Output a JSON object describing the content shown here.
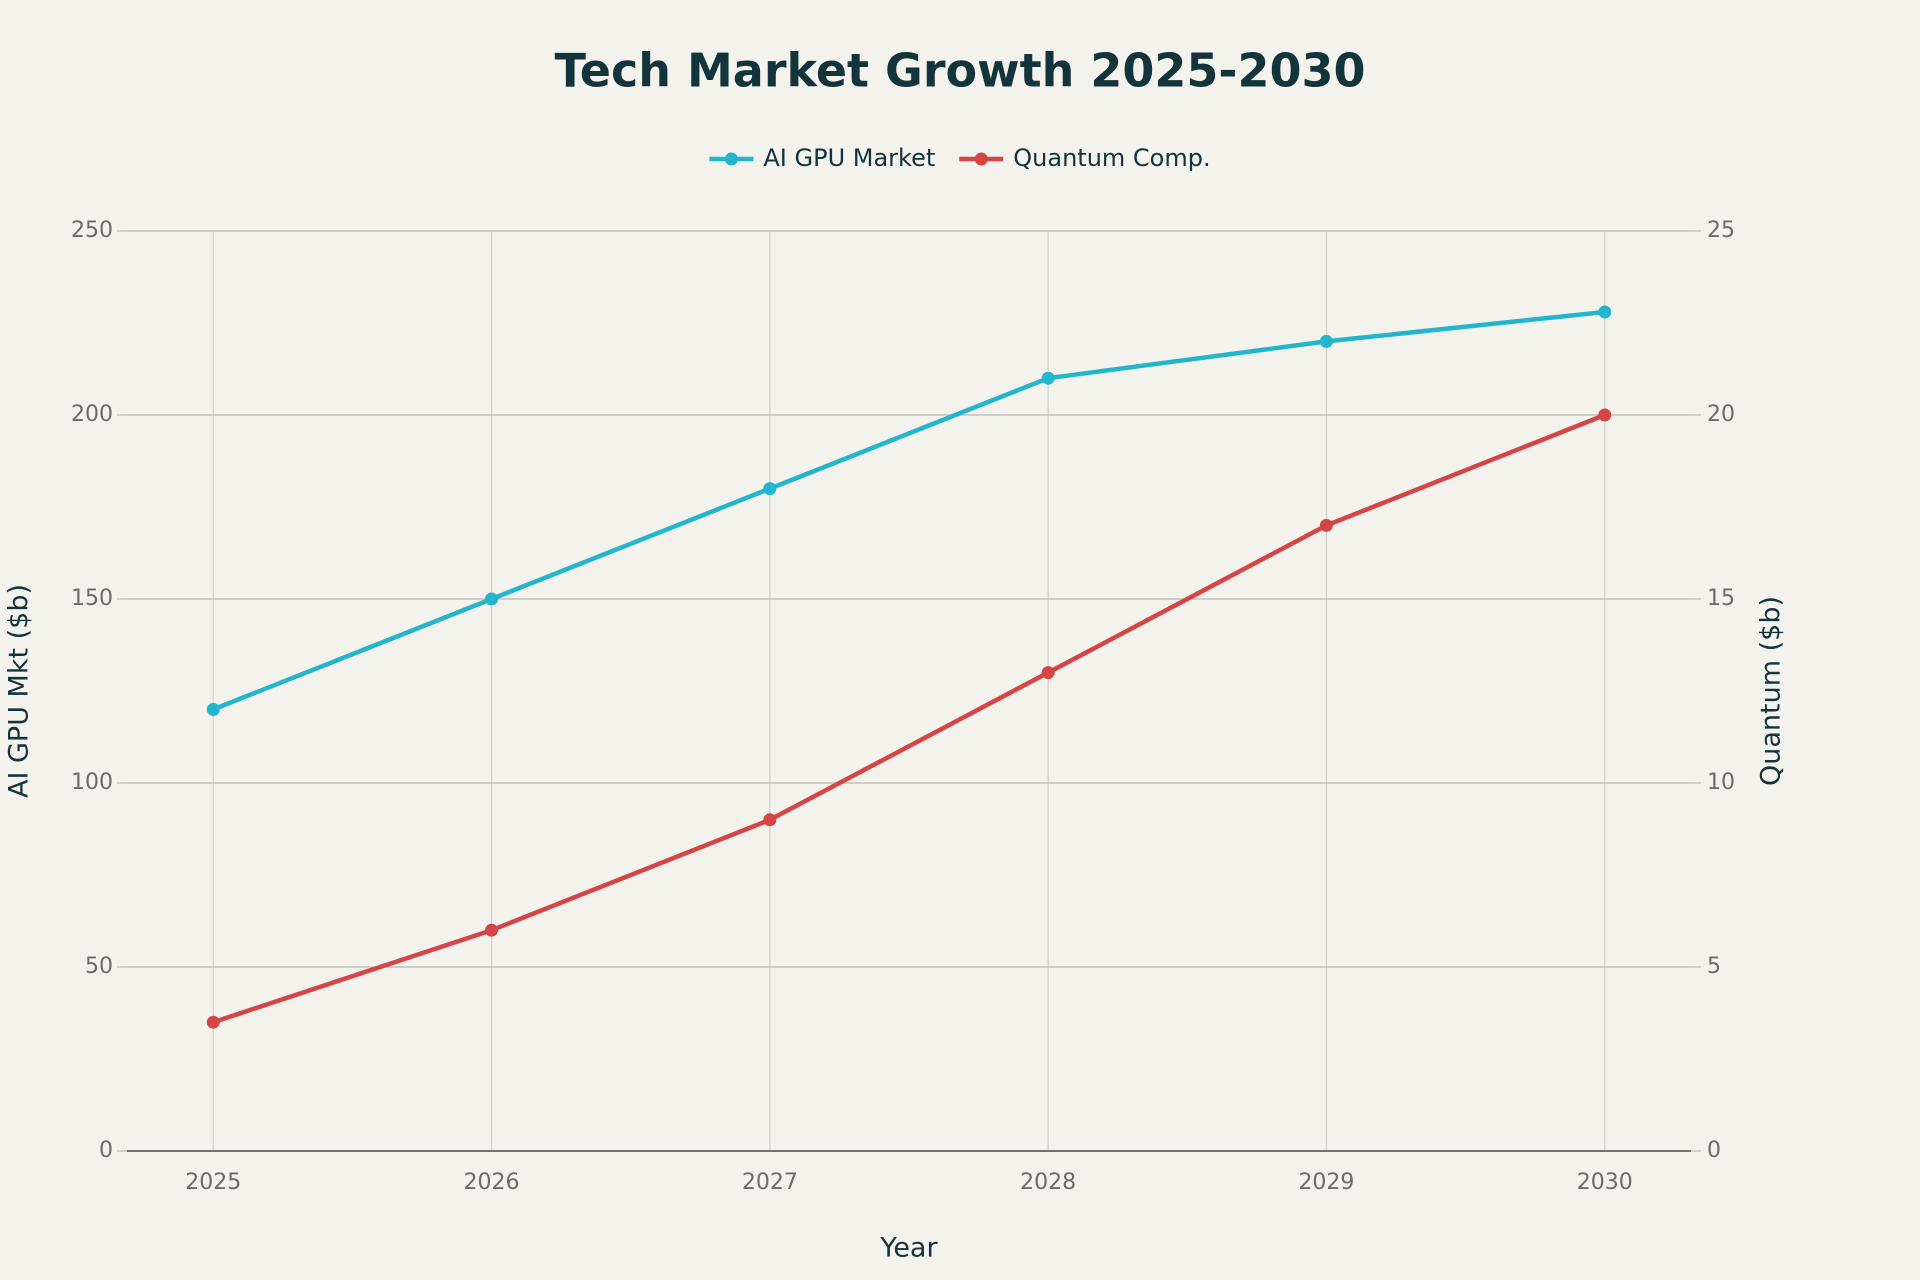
{
  "chart_data": {
    "type": "line",
    "title": "Tech Market Growth 2025-2030",
    "x_label": "Year",
    "y_label": "AI GPU Mkt ($b)",
    "y2_label": "Quantum ($b)",
    "x": [
      2025,
      2026,
      2027,
      2028,
      2029,
      2030
    ],
    "xlim": [
      2024.69,
      2030.31
    ],
    "xticks": [
      2025,
      2026,
      2027,
      2028,
      2029,
      2030
    ],
    "ylim": [
      0,
      250
    ],
    "yticks": [
      0,
      50,
      100,
      150,
      200,
      250
    ],
    "y2lim": [
      0,
      25
    ],
    "y2ticks": [
      0,
      5,
      10,
      15,
      20,
      25
    ],
    "grid": true,
    "series": [
      {
        "name": "AI GPU Market",
        "color": "#22b5cc",
        "values": [
          120,
          150,
          180,
          210,
          220,
          228
        ]
      },
      {
        "name": "Quantum Comp.",
        "color": "#d64545",
        "axis": "y2",
        "values": [
          3.5,
          6,
          9,
          13,
          17,
          20
        ]
      }
    ]
  }
}
